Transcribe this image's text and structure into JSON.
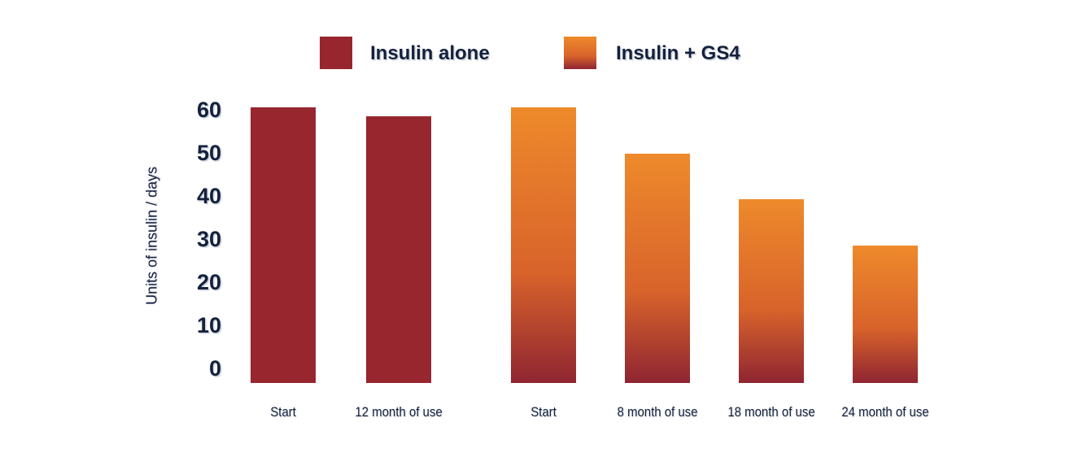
{
  "colors": {
    "background": "#ffffff",
    "text_navy": "#14213d",
    "red": "#97262f",
    "orange_top": "#ee8a2b",
    "orange_mid": "#d8632b",
    "red_bottom": "#8f2531"
  },
  "legend": {
    "items": [
      {
        "label": "Insulin alone",
        "style": "solid"
      },
      {
        "label": "Insulin + GS4",
        "style": "gradient"
      }
    ]
  },
  "chart_data": {
    "type": "bar",
    "title": "",
    "xlabel": "",
    "ylabel": "Units of insulin / days",
    "ylim": [
      0,
      60
    ],
    "yticks": [
      0,
      10,
      20,
      30,
      40,
      50,
      60
    ],
    "grid": false,
    "legend_position": "top",
    "series": [
      {
        "name": "Insulin alone",
        "style": "solid",
        "color": "#97262f",
        "points": [
          {
            "category": "Start",
            "value": 60
          },
          {
            "category": "12 month of use",
            "value": 58
          }
        ]
      },
      {
        "name": "Insulin + GS4",
        "style": "gradient",
        "gradient": [
          "#ee8a2b",
          "#d8632b",
          "#8f2531"
        ],
        "points": [
          {
            "category": "Start",
            "value": 60
          },
          {
            "category": "8 month of use",
            "value": 50
          },
          {
            "category": "18 month of use",
            "value": 40
          },
          {
            "category": "24 month of use",
            "value": 30
          }
        ]
      }
    ]
  }
}
